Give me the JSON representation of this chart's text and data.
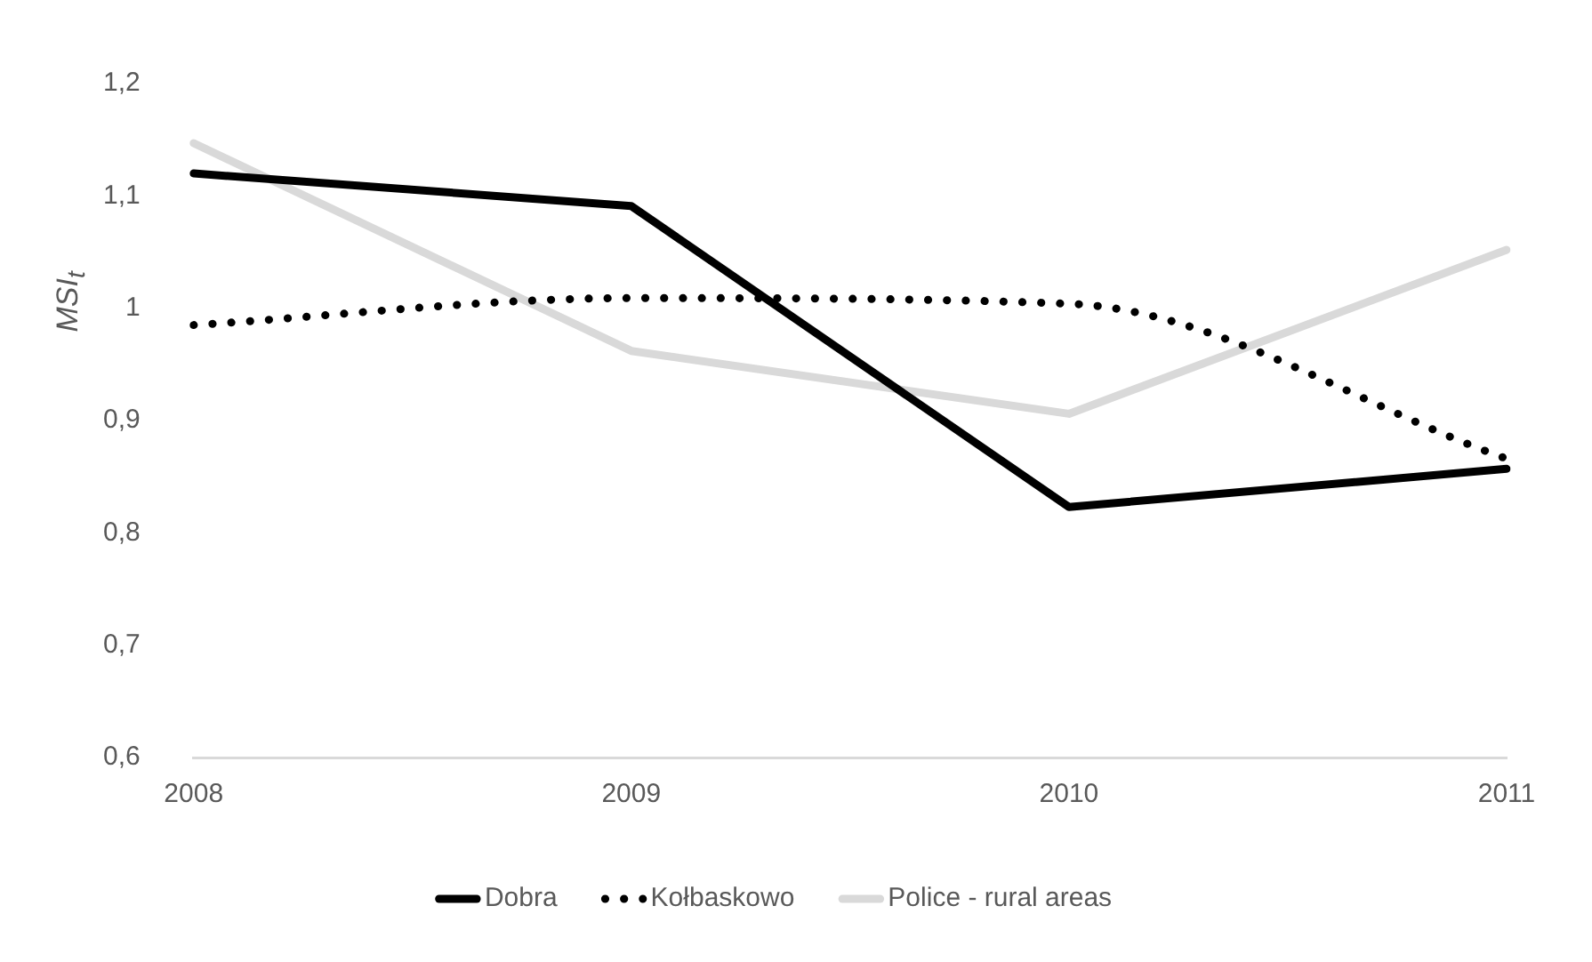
{
  "chart_data": {
    "type": "line",
    "ylabel": "MSI$_{t}$",
    "categories": [
      "2008",
      "2009",
      "2010",
      "2011"
    ],
    "series": [
      {
        "name": "Dobra",
        "color": "#000000",
        "line_style": "solid",
        "values": [
          1.12,
          1.091,
          0.823,
          0.857
        ]
      },
      {
        "name": "Kołbaskowo",
        "color": "#000000",
        "line_style": "dotted",
        "values": [
          0.985,
          1.009,
          1.004,
          0.866
        ]
      },
      {
        "name": "Police - rural areas",
        "color": "#d9d9d9",
        "line_style": "solid",
        "values": [
          1.147,
          0.962,
          0.906,
          1.052
        ]
      }
    ],
    "ylim": [
      0.6,
      1.2
    ],
    "yticks": [
      {
        "value": 0.6,
        "label": "0,6"
      },
      {
        "value": 0.7,
        "label": "0,7"
      },
      {
        "value": 0.8,
        "label": "0,8"
      },
      {
        "value": 0.9,
        "label": "0,9"
      },
      {
        "value": 1,
        "label": "1"
      },
      {
        "value": 1.1,
        "label": "1,1"
      },
      {
        "value": 1.2,
        "label": "1,2"
      }
    ],
    "grid": false,
    "legend": "bottom",
    "marker": "none"
  }
}
